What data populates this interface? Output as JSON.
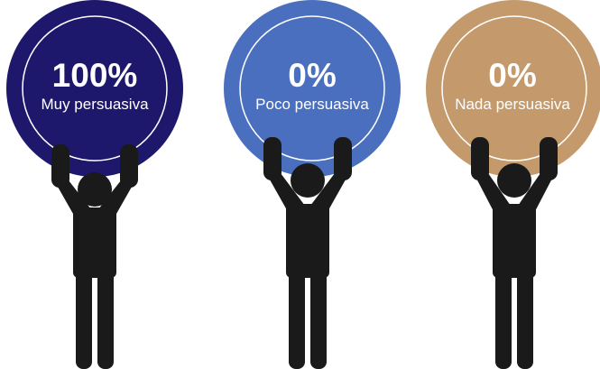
{
  "figures": [
    {
      "percent": "100%",
      "label": "Muy persuasiva",
      "color": "#1e186c"
    },
    {
      "percent": "0%",
      "label": "Poco persuasiva",
      "color": "#4a6fbe"
    },
    {
      "percent": "0%",
      "label": "Nada persuasiva",
      "color": "#c49a6c"
    }
  ],
  "person_color": "#1a1a1a",
  "ring_color": "#ffffff"
}
